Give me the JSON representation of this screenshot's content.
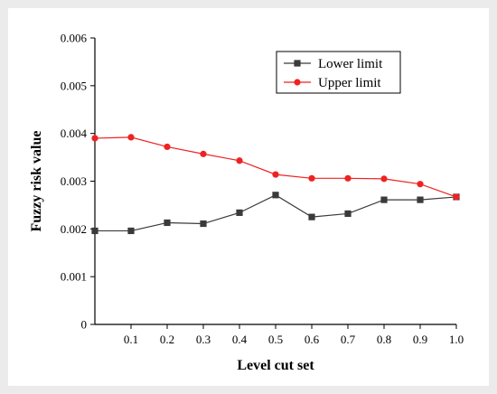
{
  "chart_data": {
    "type": "line",
    "title": "",
    "xlabel": "Level cut set",
    "ylabel": "Fuzzy risk value",
    "x": [
      0,
      0.1,
      0.2,
      0.3,
      0.4,
      0.5,
      0.6,
      0.7,
      0.8,
      0.9,
      1.0
    ],
    "x_tick_labels": [
      "0.1",
      "0.2",
      "0.3",
      "0.4",
      "0.5",
      "0.6",
      "0.7",
      "0.8",
      "0.9",
      "1.0"
    ],
    "x_ticks": [
      0.1,
      0.2,
      0.3,
      0.4,
      0.5,
      0.6,
      0.7,
      0.8,
      0.9,
      1.0
    ],
    "y_ticks": [
      0,
      0.001,
      0.002,
      0.003,
      0.004,
      0.005,
      0.006
    ],
    "y_tick_labels": [
      "0",
      "0.001",
      "0.002",
      "0.003",
      "0.004",
      "0.005",
      "0.006"
    ],
    "xlim": [
      0,
      1.0
    ],
    "ylim": [
      0,
      0.006
    ],
    "grid": false,
    "legend_position": "top-right",
    "series": [
      {
        "name": "Lower limit",
        "color": "#3a3a3a",
        "marker": "square",
        "values": [
          0.00196,
          0.00196,
          0.00213,
          0.00211,
          0.00234,
          0.00271,
          0.00225,
          0.00232,
          0.00261,
          0.00261,
          0.00267
        ]
      },
      {
        "name": "Upper limit",
        "color": "#ee2222",
        "marker": "circle",
        "values": [
          0.0039,
          0.00392,
          0.00372,
          0.00357,
          0.00343,
          0.00314,
          0.00306,
          0.00306,
          0.00305,
          0.00294,
          0.00267
        ]
      }
    ]
  }
}
